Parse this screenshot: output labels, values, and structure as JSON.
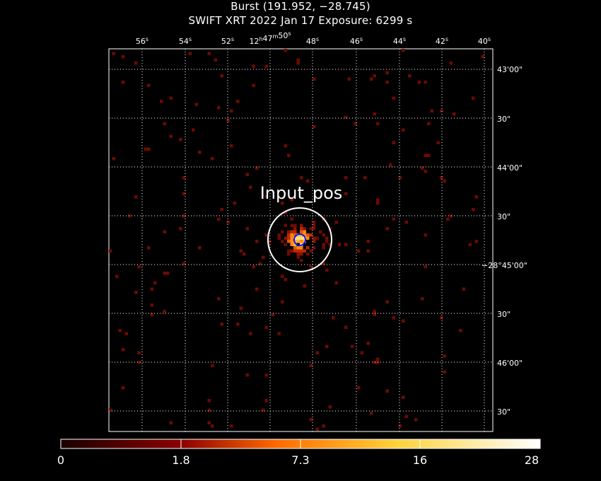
{
  "header": {
    "title": "Burst (191.952, −28.745)",
    "subtitle": "SWIFT XRT   2022 Jan 17    Exposure: 6299 s"
  },
  "image": {
    "source_label": "Input_pos",
    "ra_ticks": [
      "56s",
      "54s",
      "52s",
      "12h47m50s",
      "48s",
      "46s",
      "44s",
      "42s",
      "40s"
    ],
    "dec_ticks": [
      "43'00\"",
      "30\"",
      "44'00\"",
      "30\"",
      "−28°45'00\"",
      "30\"",
      "46'00\"",
      "30\""
    ],
    "circle_color": "#ffffff",
    "error_circle_color": "#1010ff",
    "grid_color": "#ffffff"
  },
  "colorbar": {
    "ticks": [
      "0",
      "1.8",
      "7.3",
      "16",
      "28"
    ],
    "colormap": "heat",
    "range": [
      0,
      28
    ]
  }
}
